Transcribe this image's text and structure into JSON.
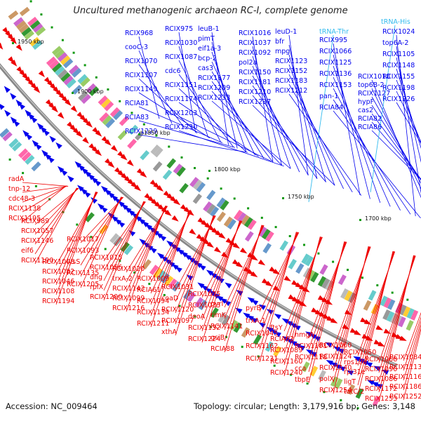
{
  "title": "Uncultured methanogenic archaeon RC-I, complete genome",
  "accession": "Accession: NC_009464",
  "genome_info": "Topology: circular; Length: 3,179,916 bp; Genes: 3,148",
  "scale_labels": [
    "1950 kbp",
    "1900 kbp",
    "1850 kbp",
    "1800 kbp",
    "1750 kbp",
    "1700 kbp"
  ],
  "colors": {
    "forward": "#0000ee",
    "reverse": "#ee0000",
    "trna": "#33bbee",
    "backbone": "#888888"
  },
  "diagram": {
    "blue_labels": [
      "RCIX968",
      "RCIX975",
      "leuB-1",
      "RCIX1016",
      "leuD-1",
      "RCIX995",
      "RCIX1018",
      "RCIX1024",
      "cooC-3",
      "RCIX1030",
      "pimT",
      "RCIX1037",
      "bfr",
      "RCIX1066",
      "top6B-2",
      "top6A-2",
      "RCIX1070",
      "RCIX1087",
      "eif1a-3",
      "RCIX1092",
      "mpg",
      "RCIX1125",
      "RCIX1127",
      "RCIX1105",
      "RCIX1107",
      "cdc6",
      "bcp-2",
      "pol2a",
      "RCIX1123",
      "RCIX1136",
      "hypF",
      "RCIX1148",
      "RCIX1149",
      "RCIX1151",
      "cas3",
      "RCIX1150",
      "RCIX1152",
      "RCIX1153",
      "cas2",
      "RCIX1155",
      "RCIA81",
      "RCIX1174",
      "RCIX1177",
      "RCIX1181",
      "RCIX1183",
      "pan-1",
      "RCIA82",
      "RCIX1198",
      "RCIA83",
      "RCIX1203",
      "RCIX1209",
      "RCIX1210",
      "RCIX1212",
      "RCIA84",
      "RCIA86",
      "RCIX1226",
      "RCIX1229",
      "RCIX1230",
      "RCIX1233",
      "RCIX1237"
    ],
    "trna_labels": [
      "tRNA-Thr",
      "tRNA-His"
    ],
    "red_labels": [
      "radA",
      "RCIX989",
      "RCIX1008",
      "RCIX1017",
      "RCIX1015",
      "RCIX1020",
      "RCIX1009",
      "RCIX1031",
      "RCIX1035",
      "pyrI",
      "pyrB",
      "ftsY",
      "hmgA",
      "RCIX1060",
      "RCIX1050",
      "RCIX1068",
      "RCIX1084",
      "tnp-12",
      "RCIX1057",
      "RCIX1082",
      "RCIX1093",
      "RCIX1056",
      "trxA-2",
      "RCIA61",
      "coaD",
      "RCIX1033",
      "rimK",
      "trxA-1",
      "RCIA62",
      "RCIX1101",
      "RCIX1124",
      "rps19e",
      "RCIX1090",
      "RCIX1113",
      "cdc48-3",
      "RCIX1146",
      "RCIX1046",
      "lysS",
      "dhg",
      "RCIX1143",
      "RCIX1094",
      "RCIX1120",
      "deoA",
      "RCIX1141",
      "RCIX1045",
      "RCIX1089",
      "RCIX1118",
      "RCIX1140",
      "rpl31e",
      "RCIX1086",
      "RCIX1116",
      "RCIX1138",
      "eif6",
      "RCIX1108",
      "RCIX1135",
      "rplX",
      "RCIX1099",
      "RCIX1134",
      "RCIX1097",
      "RCIX1132",
      "gsiB",
      "RCIX1162",
      "RCIX1160",
      "cca",
      "polX",
      "ligT",
      "RCIX1172",
      "RCIX1186",
      "RCIX1195",
      "RCIX1190",
      "RCIX1194",
      "RCIX1205",
      "RCIX1200",
      "RCIX1216",
      "RCIX1211",
      "xthA",
      "RCIX1224",
      "RCIA88",
      "RCIX1231",
      "RCIX1240",
      "tbpE",
      "RCIX1254",
      "tatC-2",
      "RCIX1253",
      "RCIX1252"
    ]
  }
}
